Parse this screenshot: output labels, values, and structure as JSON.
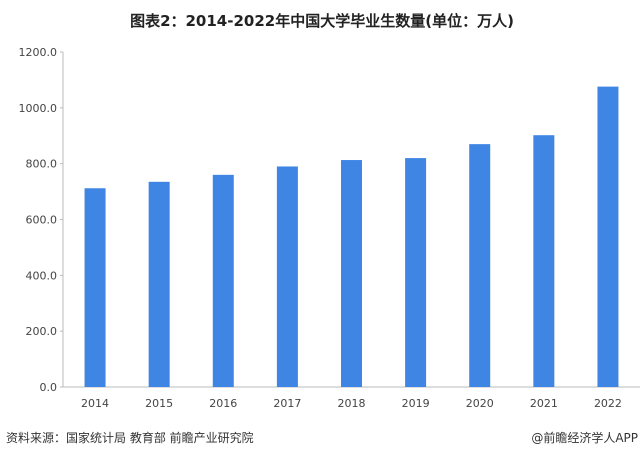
{
  "title": "图表2：2014-2022年中国大学毕业生数量(单位：万人)",
  "source": "资料来源：国家统计局 教育部 前瞻产业研究院",
  "brand": "@前瞻经济学人APP",
  "colors": {
    "bar": "#3f86e4",
    "axis": "#bbbbbb"
  },
  "chart_data": {
    "type": "bar",
    "categories": [
      "2014",
      "2015",
      "2016",
      "2017",
      "2018",
      "2019",
      "2020",
      "2021",
      "2022"
    ],
    "values": [
      712,
      735,
      760,
      790,
      813,
      820,
      870,
      902,
      1076
    ],
    "ylim": [
      0,
      1200
    ],
    "yticks": [
      "0.0",
      "200.0",
      "400.0",
      "600.0",
      "800.0",
      "1000.0",
      "1200.0"
    ],
    "grid": false,
    "xlabel": "",
    "ylabel": ""
  }
}
